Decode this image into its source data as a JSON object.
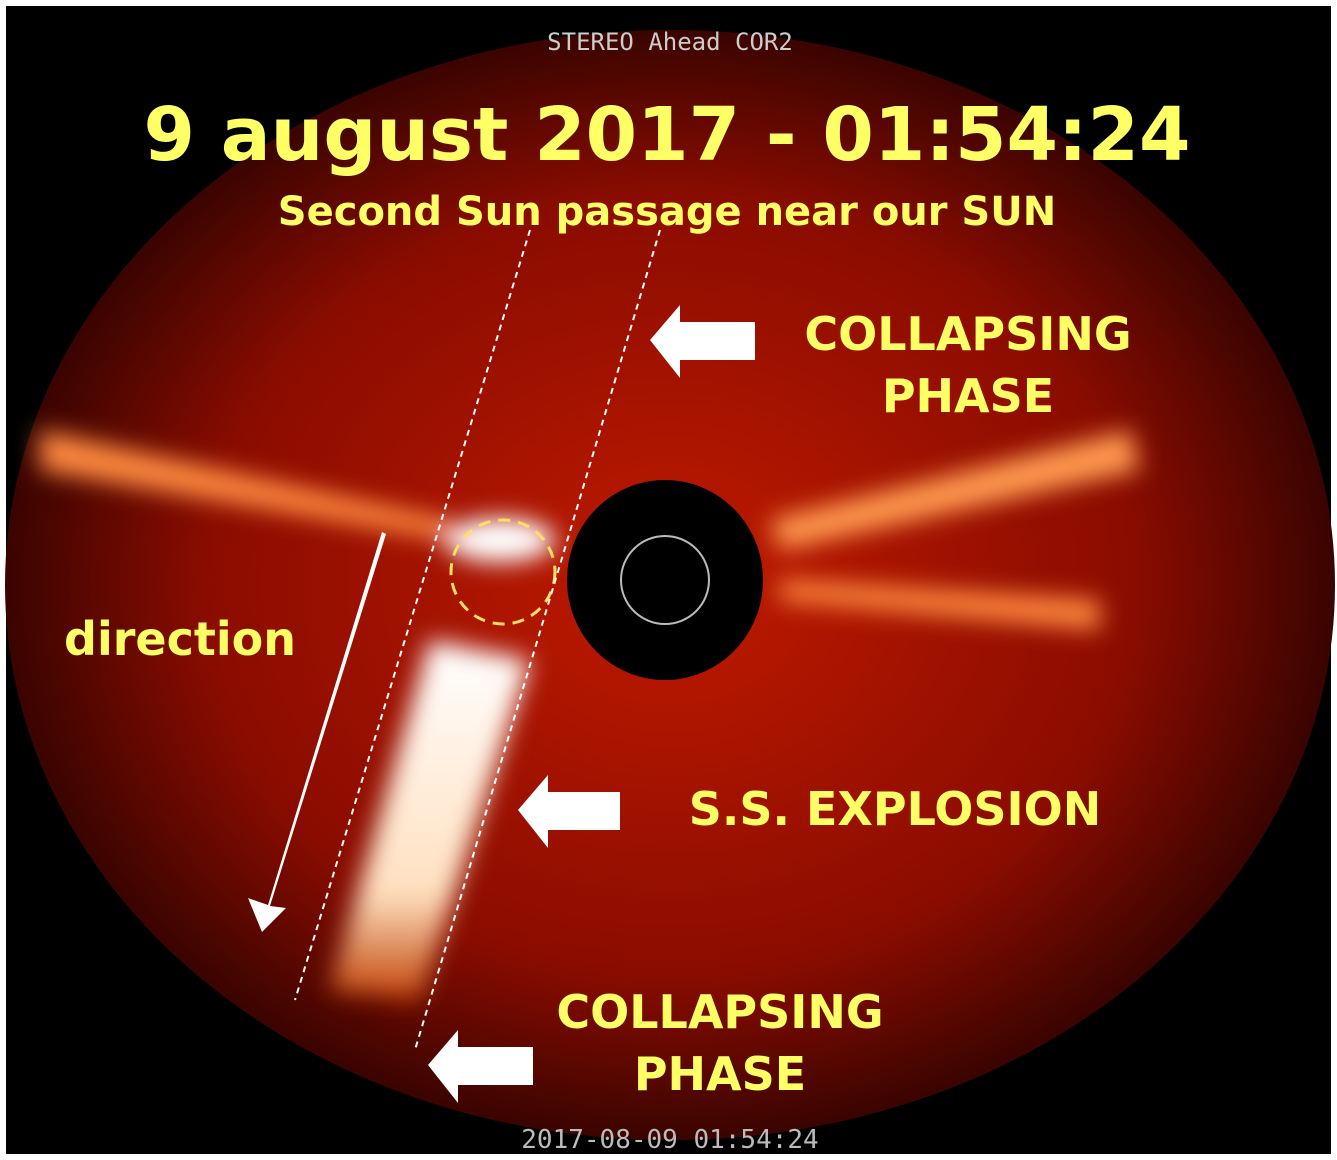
{
  "header": {
    "instrument": "STEREO Ahead COR2",
    "title": "9 august 2017 - 01:54:24",
    "subtitle": "Second Sun passage near our SUN"
  },
  "annotations": {
    "top_arrow": "COLLAPSING\nPHASE",
    "middle_arrow": "S.S. EXPLOSION",
    "bottom_arrow": "COLLAPSING\nPHASE",
    "direction": "direction"
  },
  "footer": {
    "timestamp": "2017-08-09 01:54:24"
  }
}
